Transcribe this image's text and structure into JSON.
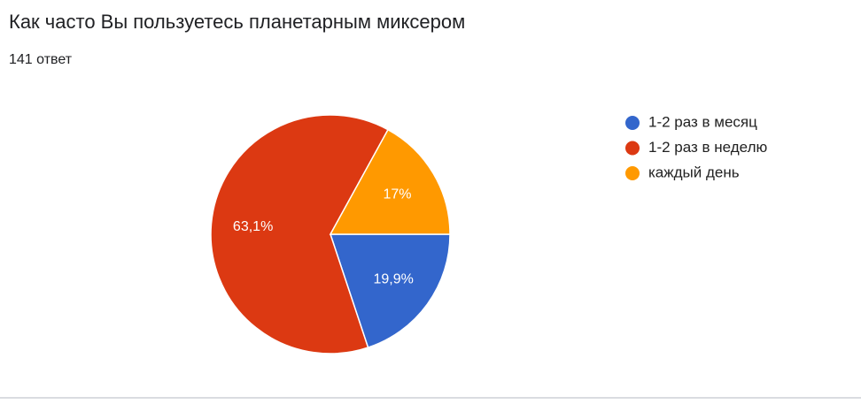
{
  "chart_data": {
    "type": "pie",
    "title": "Как часто Вы пользуетесь планетарным миксером",
    "subtitle": "141 ответ",
    "categories": [
      "1-2 раз в месяц",
      "1-2 раз в неделю",
      "каждый день"
    ],
    "values": [
      19.9,
      63.1,
      17
    ],
    "value_labels": [
      "19,9%",
      "63,1%",
      "17%"
    ],
    "colors": [
      "#3366cc",
      "#dc3912",
      "#ff9900"
    ],
    "legend": "right"
  }
}
